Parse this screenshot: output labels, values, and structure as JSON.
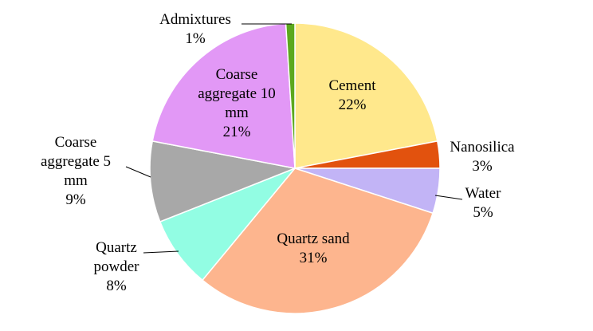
{
  "chart_data": {
    "type": "pie",
    "categories": [
      "Cement",
      "Nanosilica",
      "Water",
      "Quartz sand",
      "Quartz powder",
      "Coarse aggregate 5 mm",
      "Coarse aggregate 10 mm",
      "Admixtures"
    ],
    "values": [
      22,
      3,
      5,
      31,
      8,
      9,
      21,
      1
    ],
    "value_labels": [
      "22%",
      "3%",
      "5%",
      "31%",
      "8%",
      "9%",
      "21%",
      "1%"
    ],
    "colors": [
      "#ffe88c",
      "#e2520e",
      "#c2b4f6",
      "#fdb58e",
      "#92fde3",
      "#a8a8a8",
      "#e298f6",
      "#5ca81e"
    ]
  }
}
